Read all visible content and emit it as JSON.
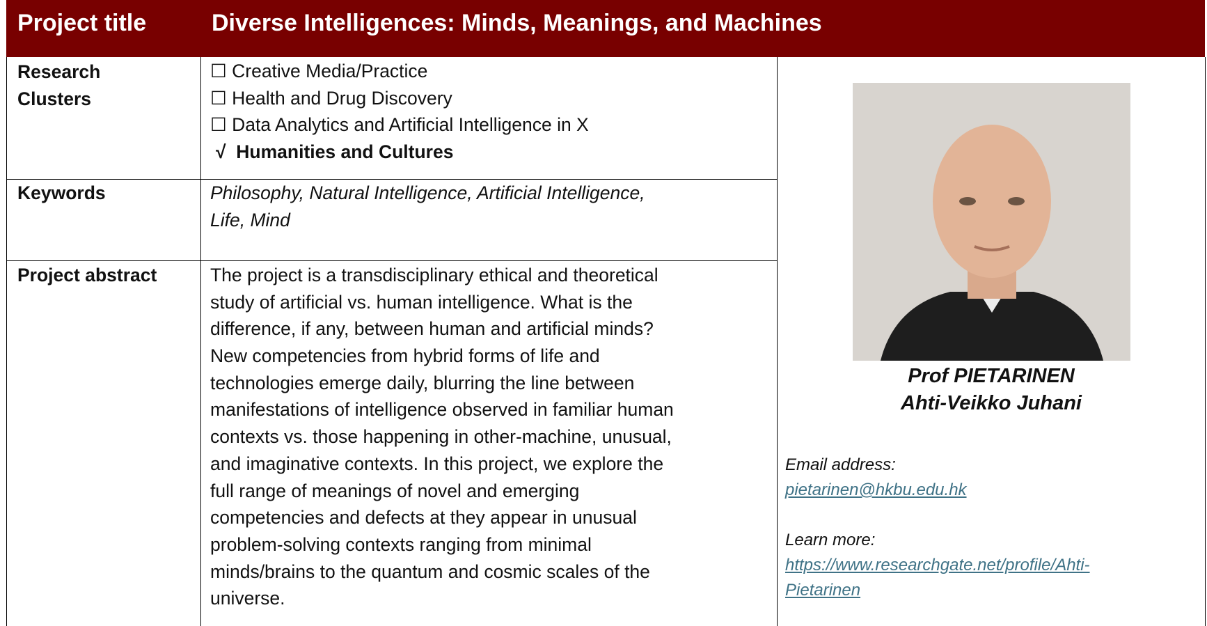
{
  "header": {
    "label": "Project title",
    "title": "Diverse Intelligences: Minds, Meanings, and Machines"
  },
  "research_clusters": {
    "label": "Research Clusters",
    "options": [
      "☐ Creative Media/Practice",
      "☐ Health and Drug Discovery",
      "☐ Data Analytics and Artificial Intelligence in X"
    ],
    "selected_mark": "√",
    "selected": "Humanities and Cultures"
  },
  "keywords": {
    "label": "Keywords",
    "lines": [
      "Philosophy, Natural Intelligence, Artificial Intelligence,",
      "Life, Mind"
    ]
  },
  "abstract": {
    "label": "Project abstract",
    "lines": [
      "The project is a transdisciplinary ethical and theoretical",
      "study of artificial vs. human intelligence. What is the",
      "difference, if any, between human and artificial minds?",
      "New competencies from hybrid forms of life and",
      "technologies emerge daily, blurring the line between",
      "manifestations of intelligence observed in familiar human",
      "contexts vs. those happening in other-machine, unusual,",
      "and imaginative contexts. In this project, we explore the",
      "full range of meanings of novel and emerging",
      "competencies and defects at they appear in unusual",
      "problem-solving contexts ranging from minimal",
      "minds/brains to the quantum and cosmic scales of the",
      "universe."
    ]
  },
  "profile": {
    "name_lines": [
      "Prof PIETARINEN",
      "Ahti-Veikko Juhani"
    ],
    "email_label": "Email address:",
    "email": "pietarinen@hkbu.edu.hk",
    "more_label": "Learn more:",
    "url_lines": [
      "https://www.researchgate.net/profile/Ahti-",
      "Pietarinen"
    ]
  }
}
